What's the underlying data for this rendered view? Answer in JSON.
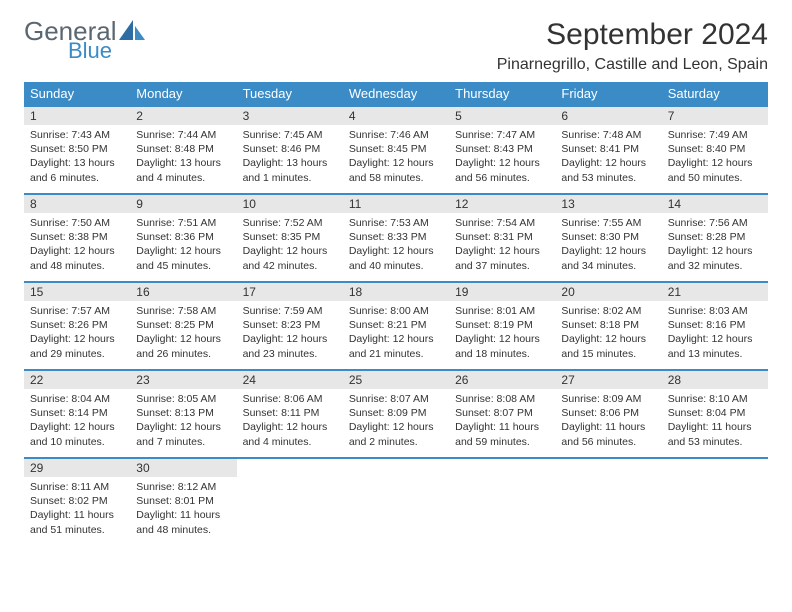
{
  "logo": {
    "text1": "General",
    "text2": "Blue"
  },
  "title": "September 2024",
  "location": "Pinarnegrillo, Castille and Leon, Spain",
  "colors": {
    "header_bg": "#3b8bc6",
    "header_text": "#ffffff",
    "daynum_bg": "#e7e7e7",
    "border": "#3b8bc6",
    "page_bg": "#ffffff",
    "text": "#333333",
    "logo_gray": "#5b6770",
    "logo_blue": "#3b8bc6"
  },
  "weekdays": [
    "Sunday",
    "Monday",
    "Tuesday",
    "Wednesday",
    "Thursday",
    "Friday",
    "Saturday"
  ],
  "days": [
    {
      "n": "1",
      "sunrise": "7:43 AM",
      "sunset": "8:50 PM",
      "dl": "13 hours and 6 minutes."
    },
    {
      "n": "2",
      "sunrise": "7:44 AM",
      "sunset": "8:48 PM",
      "dl": "13 hours and 4 minutes."
    },
    {
      "n": "3",
      "sunrise": "7:45 AM",
      "sunset": "8:46 PM",
      "dl": "13 hours and 1 minutes."
    },
    {
      "n": "4",
      "sunrise": "7:46 AM",
      "sunset": "8:45 PM",
      "dl": "12 hours and 58 minutes."
    },
    {
      "n": "5",
      "sunrise": "7:47 AM",
      "sunset": "8:43 PM",
      "dl": "12 hours and 56 minutes."
    },
    {
      "n": "6",
      "sunrise": "7:48 AM",
      "sunset": "8:41 PM",
      "dl": "12 hours and 53 minutes."
    },
    {
      "n": "7",
      "sunrise": "7:49 AM",
      "sunset": "8:40 PM",
      "dl": "12 hours and 50 minutes."
    },
    {
      "n": "8",
      "sunrise": "7:50 AM",
      "sunset": "8:38 PM",
      "dl": "12 hours and 48 minutes."
    },
    {
      "n": "9",
      "sunrise": "7:51 AM",
      "sunset": "8:36 PM",
      "dl": "12 hours and 45 minutes."
    },
    {
      "n": "10",
      "sunrise": "7:52 AM",
      "sunset": "8:35 PM",
      "dl": "12 hours and 42 minutes."
    },
    {
      "n": "11",
      "sunrise": "7:53 AM",
      "sunset": "8:33 PM",
      "dl": "12 hours and 40 minutes."
    },
    {
      "n": "12",
      "sunrise": "7:54 AM",
      "sunset": "8:31 PM",
      "dl": "12 hours and 37 minutes."
    },
    {
      "n": "13",
      "sunrise": "7:55 AM",
      "sunset": "8:30 PM",
      "dl": "12 hours and 34 minutes."
    },
    {
      "n": "14",
      "sunrise": "7:56 AM",
      "sunset": "8:28 PM",
      "dl": "12 hours and 32 minutes."
    },
    {
      "n": "15",
      "sunrise": "7:57 AM",
      "sunset": "8:26 PM",
      "dl": "12 hours and 29 minutes."
    },
    {
      "n": "16",
      "sunrise": "7:58 AM",
      "sunset": "8:25 PM",
      "dl": "12 hours and 26 minutes."
    },
    {
      "n": "17",
      "sunrise": "7:59 AM",
      "sunset": "8:23 PM",
      "dl": "12 hours and 23 minutes."
    },
    {
      "n": "18",
      "sunrise": "8:00 AM",
      "sunset": "8:21 PM",
      "dl": "12 hours and 21 minutes."
    },
    {
      "n": "19",
      "sunrise": "8:01 AM",
      "sunset": "8:19 PM",
      "dl": "12 hours and 18 minutes."
    },
    {
      "n": "20",
      "sunrise": "8:02 AM",
      "sunset": "8:18 PM",
      "dl": "12 hours and 15 minutes."
    },
    {
      "n": "21",
      "sunrise": "8:03 AM",
      "sunset": "8:16 PM",
      "dl": "12 hours and 13 minutes."
    },
    {
      "n": "22",
      "sunrise": "8:04 AM",
      "sunset": "8:14 PM",
      "dl": "12 hours and 10 minutes."
    },
    {
      "n": "23",
      "sunrise": "8:05 AM",
      "sunset": "8:13 PM",
      "dl": "12 hours and 7 minutes."
    },
    {
      "n": "24",
      "sunrise": "8:06 AM",
      "sunset": "8:11 PM",
      "dl": "12 hours and 4 minutes."
    },
    {
      "n": "25",
      "sunrise": "8:07 AM",
      "sunset": "8:09 PM",
      "dl": "12 hours and 2 minutes."
    },
    {
      "n": "26",
      "sunrise": "8:08 AM",
      "sunset": "8:07 PM",
      "dl": "11 hours and 59 minutes."
    },
    {
      "n": "27",
      "sunrise": "8:09 AM",
      "sunset": "8:06 PM",
      "dl": "11 hours and 56 minutes."
    },
    {
      "n": "28",
      "sunrise": "8:10 AM",
      "sunset": "8:04 PM",
      "dl": "11 hours and 53 minutes."
    },
    {
      "n": "29",
      "sunrise": "8:11 AM",
      "sunset": "8:02 PM",
      "dl": "11 hours and 51 minutes."
    },
    {
      "n": "30",
      "sunrise": "8:12 AM",
      "sunset": "8:01 PM",
      "dl": "11 hours and 48 minutes."
    }
  ],
  "labels": {
    "sunrise": "Sunrise:",
    "sunset": "Sunset:",
    "daylight": "Daylight:"
  }
}
